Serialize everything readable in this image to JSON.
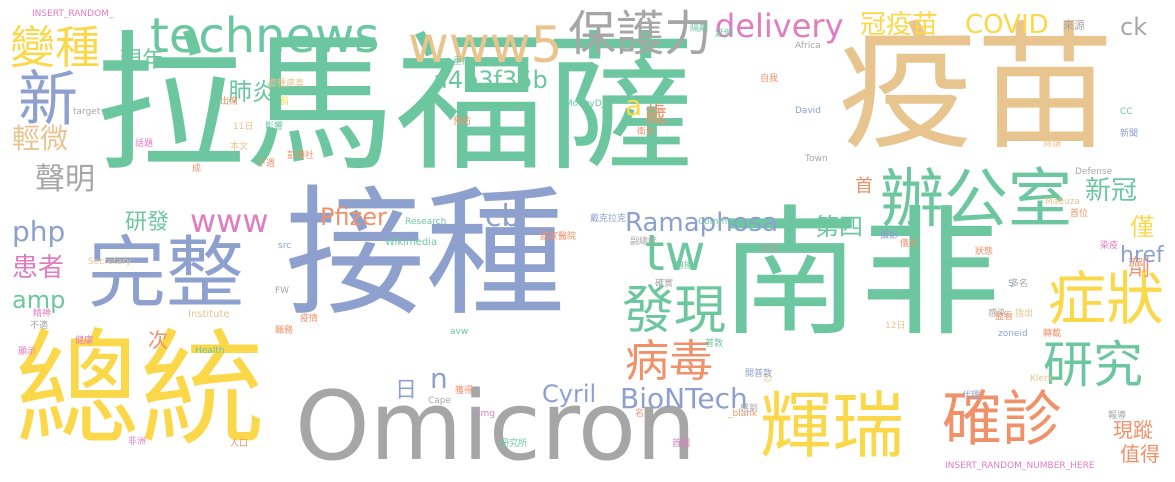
{
  "palette": {
    "green": "#6cc7a0",
    "tan": "#e8c48f",
    "yellow": "#fbd84a",
    "blue": "#8ea0ce",
    "orange": "#f0916a",
    "pink": "#e07cc0",
    "gray": "#a6a6a6",
    "lime": "#b6d65b"
  },
  "words": [
    "拉馬福薩",
    "疫苗",
    "接種",
    "南非",
    "總統",
    "Omicron",
    "完整",
    "technews",
    "變種",
    "www5",
    "保護力",
    "delivery",
    "冠疫苗",
    "COVID",
    "辦公室",
    "輝瑞",
    "確診",
    "研究",
    "症狀",
    "發現",
    "病毒",
    "tw",
    "www",
    "cb",
    "php",
    "Ramaphosa",
    "Pfizer",
    "BioNTech",
    "Cyril",
    "a4b3f35b",
    "新",
    "輕微",
    "聲明",
    "肺炎",
    "現年",
    "研發",
    "患者",
    "amp",
    "n",
    "日",
    "第四",
    "新冠",
    "僅",
    "劑",
    "href",
    "首",
    "歲",
    "a",
    "ck",
    "現蹤",
    "值得",
    "次",
    "INSERT_RANDOM_",
    "INSERT_RANDOM_NUMBER_HERE",
    "MoneyDJ",
    "target",
    "來源",
    "Africa",
    "自我",
    "David",
    "Wikimedia",
    "Research",
    "Commons",
    "Institute",
    "Health",
    "Cape",
    "img",
    "Secretary",
    "Defense",
    "Town",
    "Klerk",
    "Mabuza",
    "zoneid",
    "avw",
    "FW",
    "src",
    "_blank",
    "CC",
    "S",
    "12日",
    "11日",
    "精神",
    "健康",
    "不適",
    "顯示",
    "人口",
    "非洲",
    "研究所",
    "首圖",
    "代理",
    "報導",
    "隔離",
    "新聞",
    "閱讀",
    "變種病毒",
    "出席",
    "本文",
    "預防",
    "衛生",
    "下週",
    "彭博社",
    "影響",
    "重症",
    "延伸",
    "話題",
    "成",
    "恐",
    "感染",
    "監看",
    "指出",
    "多名",
    "儀式",
    "開普敦",
    "職務",
    "獲得",
    "感到",
    "轉載",
    "傳播",
    "戴克拉克",
    "國家醫院",
    "副總統",
    "確實",
    "普敦",
    "首位",
    "攝影",
    "狀態",
    "染疫",
    "疫情",
    "追蹤",
    "前",
    "名",
    "南"
  ]
}
